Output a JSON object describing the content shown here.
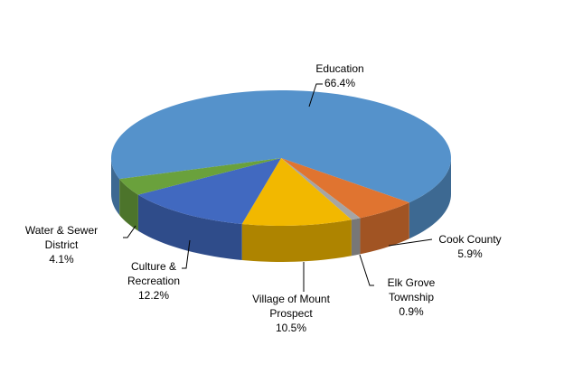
{
  "chart_data": {
    "type": "pie3d",
    "categories": [
      "Education",
      "Cook County",
      "Elk Grove Township",
      "Village of Mount Prospect",
      "Culture & Recreation",
      "Water & Sewer District"
    ],
    "values": [
      66.4,
      5.9,
      0.9,
      10.5,
      12.2,
      4.1
    ],
    "value_labels": [
      "66.4%",
      "5.9%",
      "0.9%",
      "10.5%",
      "12.2%",
      "4.1%"
    ],
    "colors": [
      "#5592cb",
      "#e07430",
      "#a5a5a5",
      "#f2b800",
      "#4169c0",
      "#6aa13c"
    ]
  }
}
